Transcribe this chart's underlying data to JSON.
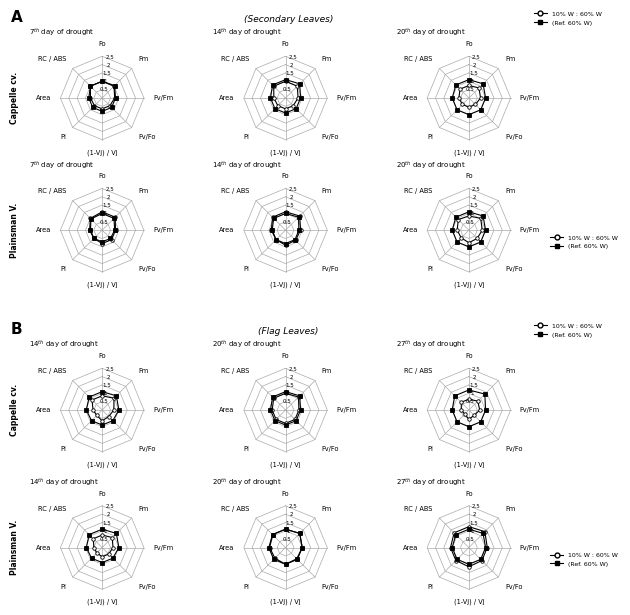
{
  "figure_label_A": "A",
  "figure_label_B": "B",
  "title_A": "(Secondary Leaves)",
  "title_B": "(Flag Leaves)",
  "categories": [
    "Fo",
    "Fm",
    "Fv/Fm",
    "Fv/Fo",
    "(1-Vj) / Vj",
    "PI",
    "Area",
    "RC / ABS"
  ],
  "radar_levels": [
    0.5,
    1.0,
    1.5,
    2.0,
    2.5
  ],
  "radar_max": 2.5,
  "legend_line1": "10% W : 60% W",
  "legend_line2": "(Ref. 60% W)",
  "section_A": {
    "row0_drought_labels": [
      "7$^{th}$ day of drought",
      "14$^{th}$ day of drought",
      "20$^{th}$ day of drought"
    ],
    "row1_drought_labels": [
      "7$^{th}$ day of drought",
      "14$^{th}$ day of drought",
      "20$^{th}$ day of drought"
    ],
    "plots": [
      {
        "row": 0,
        "col": 0,
        "series1": [
          1.0,
          1.0,
          0.75,
          0.65,
          0.65,
          0.65,
          0.7,
          1.0
        ],
        "series2": [
          1.0,
          1.05,
          0.8,
          0.8,
          0.8,
          0.8,
          0.8,
          1.0
        ]
      },
      {
        "row": 0,
        "col": 1,
        "series1": [
          1.0,
          1.0,
          0.75,
          0.65,
          0.65,
          0.65,
          0.7,
          1.0
        ],
        "series2": [
          1.1,
          1.2,
          0.9,
          0.9,
          0.9,
          0.9,
          0.9,
          1.1
        ]
      },
      {
        "row": 0,
        "col": 2,
        "series1": [
          0.75,
          0.85,
          0.7,
          0.55,
          0.55,
          0.55,
          0.6,
          0.75
        ],
        "series2": [
          1.1,
          1.2,
          1.0,
          1.0,
          1.0,
          1.0,
          1.0,
          1.1
        ]
      },
      {
        "row": 1,
        "col": 0,
        "series1": [
          1.1,
          1.1,
          0.8,
          0.8,
          0.8,
          0.7,
          0.75,
          1.0
        ],
        "series2": [
          1.0,
          1.0,
          0.75,
          0.7,
          0.7,
          0.7,
          0.7,
          0.95
        ]
      },
      {
        "row": 1,
        "col": 1,
        "series1": [
          1.1,
          1.2,
          0.9,
          0.85,
          0.9,
          0.8,
          0.85,
          1.1
        ],
        "series2": [
          1.0,
          1.1,
          0.8,
          0.8,
          0.8,
          0.8,
          0.8,
          1.0
        ]
      },
      {
        "row": 1,
        "col": 2,
        "series1": [
          0.85,
          1.0,
          0.8,
          0.7,
          0.75,
          0.65,
          0.7,
          0.9
        ],
        "series2": [
          1.1,
          1.2,
          1.0,
          1.0,
          1.0,
          1.0,
          1.0,
          1.1
        ]
      }
    ]
  },
  "section_B": {
    "row0_drought_labels": [
      "14$^{th}$ day of drought",
      "20$^{th}$ day of drought",
      "27$^{th}$ day of drought"
    ],
    "row1_drought_labels": [
      "14$^{th}$ day of drought",
      "20$^{th}$ day of drought",
      "27$^{th}$ day of drought"
    ],
    "plots": [
      {
        "row": 0,
        "col": 0,
        "series1": [
          0.85,
          1.0,
          0.7,
          0.55,
          0.65,
          0.45,
          0.55,
          0.85
        ],
        "series2": [
          1.1,
          1.2,
          1.0,
          0.9,
          0.9,
          0.9,
          0.95,
          1.1
        ]
      },
      {
        "row": 0,
        "col": 1,
        "series1": [
          1.0,
          1.1,
          0.8,
          0.8,
          0.8,
          0.8,
          0.8,
          1.0
        ],
        "series2": [
          1.1,
          1.2,
          0.9,
          0.9,
          0.9,
          0.9,
          0.9,
          1.1
        ]
      },
      {
        "row": 0,
        "col": 2,
        "series1": [
          0.65,
          0.75,
          0.65,
          0.45,
          0.55,
          0.35,
          0.45,
          0.65
        ],
        "series2": [
          1.2,
          1.35,
          1.0,
          1.0,
          1.0,
          1.0,
          1.0,
          1.2
        ]
      },
      {
        "row": 1,
        "col": 0,
        "series1": [
          0.75,
          0.85,
          0.65,
          0.55,
          0.55,
          0.45,
          0.5,
          0.75
        ],
        "series2": [
          1.1,
          1.2,
          1.0,
          0.9,
          0.9,
          0.9,
          0.95,
          1.1
        ]
      },
      {
        "row": 1,
        "col": 1,
        "series1": [
          1.1,
          1.2,
          1.0,
          0.95,
          1.0,
          0.9,
          0.95,
          1.1
        ],
        "series2": [
          1.1,
          1.2,
          1.0,
          1.0,
          1.0,
          1.0,
          1.0,
          1.1
        ]
      },
      {
        "row": 1,
        "col": 2,
        "series1": [
          1.25,
          1.35,
          1.1,
          1.1,
          1.15,
          1.1,
          1.1,
          1.25
        ],
        "series2": [
          1.1,
          1.2,
          1.0,
          1.0,
          1.0,
          1.0,
          1.0,
          1.1
        ]
      }
    ]
  },
  "background_color": "#ffffff"
}
